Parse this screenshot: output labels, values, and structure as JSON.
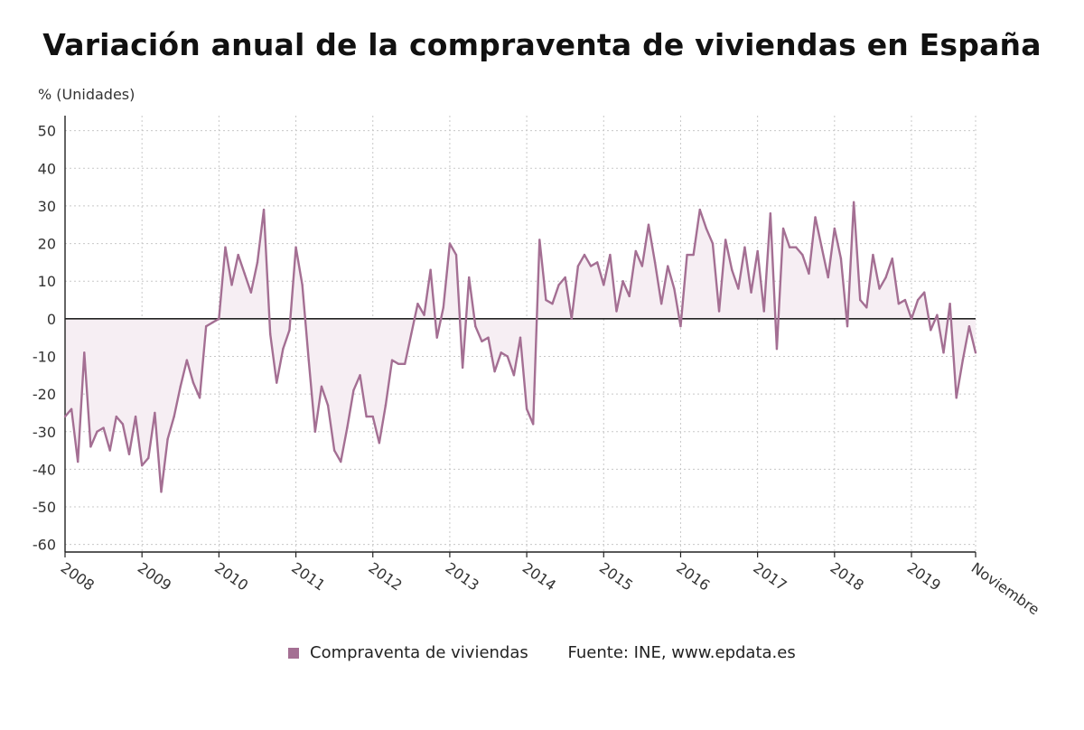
{
  "chart_data": {
    "type": "line",
    "title": "Variación anual de la compraventa de viviendas en España",
    "ylabel": "% (Unidades)",
    "ylim": [
      -62,
      54
    ],
    "yticks": [
      50,
      40,
      30,
      20,
      10,
      0,
      -10,
      -20,
      -30,
      -40,
      -50,
      -60
    ],
    "x_tick_labels": [
      "2008",
      "2009",
      "2010",
      "2011",
      "2012",
      "2013",
      "2014",
      "2015",
      "2016",
      "2017",
      "2018",
      "2019",
      "Noviembre"
    ],
    "x_tick_months": [
      0,
      12,
      24,
      36,
      48,
      60,
      72,
      84,
      96,
      108,
      120,
      132,
      142
    ],
    "grid": true,
    "legend_position": "bottom",
    "source": "Fuente: INE, www.epdata.es",
    "colors": {
      "line": "#a46f93",
      "fill": "#f6eef3",
      "axis": "#222222",
      "grid": "#c8c8c8"
    },
    "series": [
      {
        "name": "Compraventa de viviendas",
        "values": [
          -26,
          -24,
          -38,
          -9,
          -34,
          -30,
          -29,
          -35,
          -26,
          -28,
          -36,
          -26,
          -39,
          -37,
          -25,
          -46,
          -32,
          -26,
          -18,
          -11,
          -17,
          -21,
          -2,
          -1,
          0,
          19,
          9,
          17,
          12,
          7,
          15,
          29,
          -4,
          -17,
          -8,
          -3,
          19,
          9,
          -11,
          -30,
          -18,
          -23,
          -35,
          -38,
          -29,
          -19,
          -15,
          -26,
          -26,
          -33,
          -23,
          -11,
          -12,
          -12,
          -4,
          4,
          1,
          13,
          -5,
          3,
          20,
          17,
          -13,
          11,
          -2,
          -6,
          -5,
          -14,
          -9,
          -10,
          -15,
          -5,
          -24,
          -28,
          21,
          5,
          4,
          9,
          11,
          0,
          14,
          17,
          14,
          15,
          9,
          17,
          2,
          10,
          6,
          18,
          14,
          25,
          15,
          4,
          14,
          8,
          -2,
          17,
          17,
          29,
          24,
          20,
          2,
          21,
          13,
          8,
          19,
          7,
          18,
          2,
          28,
          -8,
          24,
          19,
          19,
          17,
          12,
          27,
          19,
          11,
          24,
          16,
          -2,
          31,
          5,
          3,
          17,
          8,
          11,
          16,
          4,
          5,
          0,
          5,
          7,
          -3,
          1,
          -9,
          4,
          -21,
          -11,
          -2,
          -9
        ]
      }
    ]
  },
  "legend": {
    "series_label": "Compraventa de viviendas",
    "source_label": "Fuente: INE, www.epdata.es"
  }
}
